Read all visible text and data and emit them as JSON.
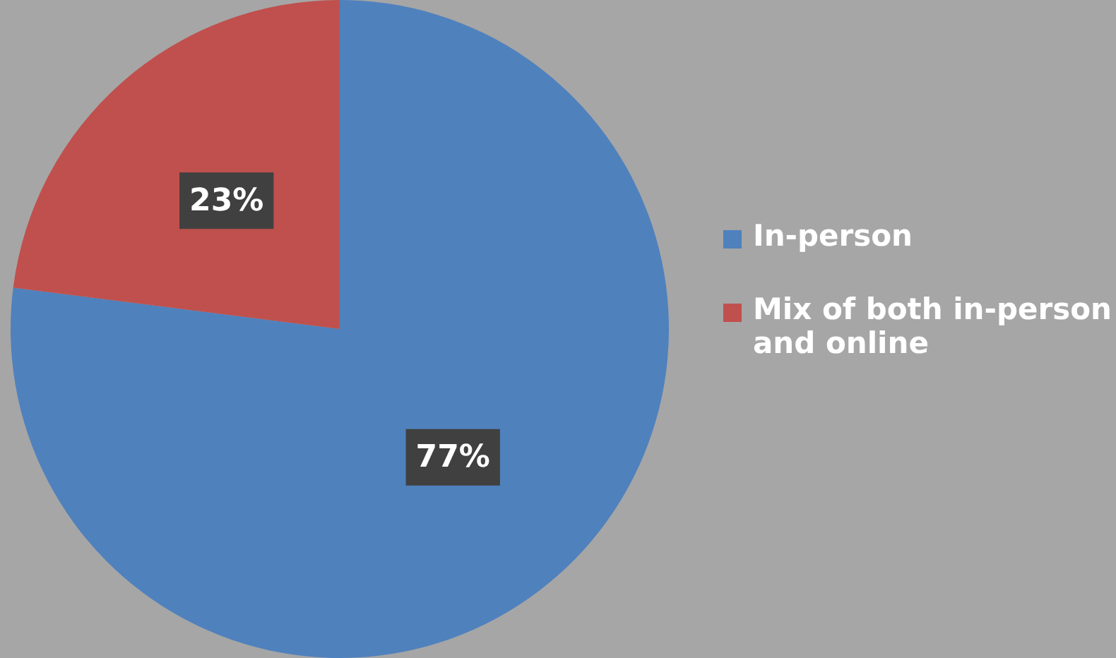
{
  "chart_data": {
    "type": "pie",
    "categories": [
      "In-person",
      "Mix of both in-person and online"
    ],
    "values": [
      77,
      23
    ],
    "colors": [
      "#4f81bd",
      "#c0504d"
    ],
    "value_labels": [
      "77%",
      "23%"
    ],
    "legend": "right"
  }
}
